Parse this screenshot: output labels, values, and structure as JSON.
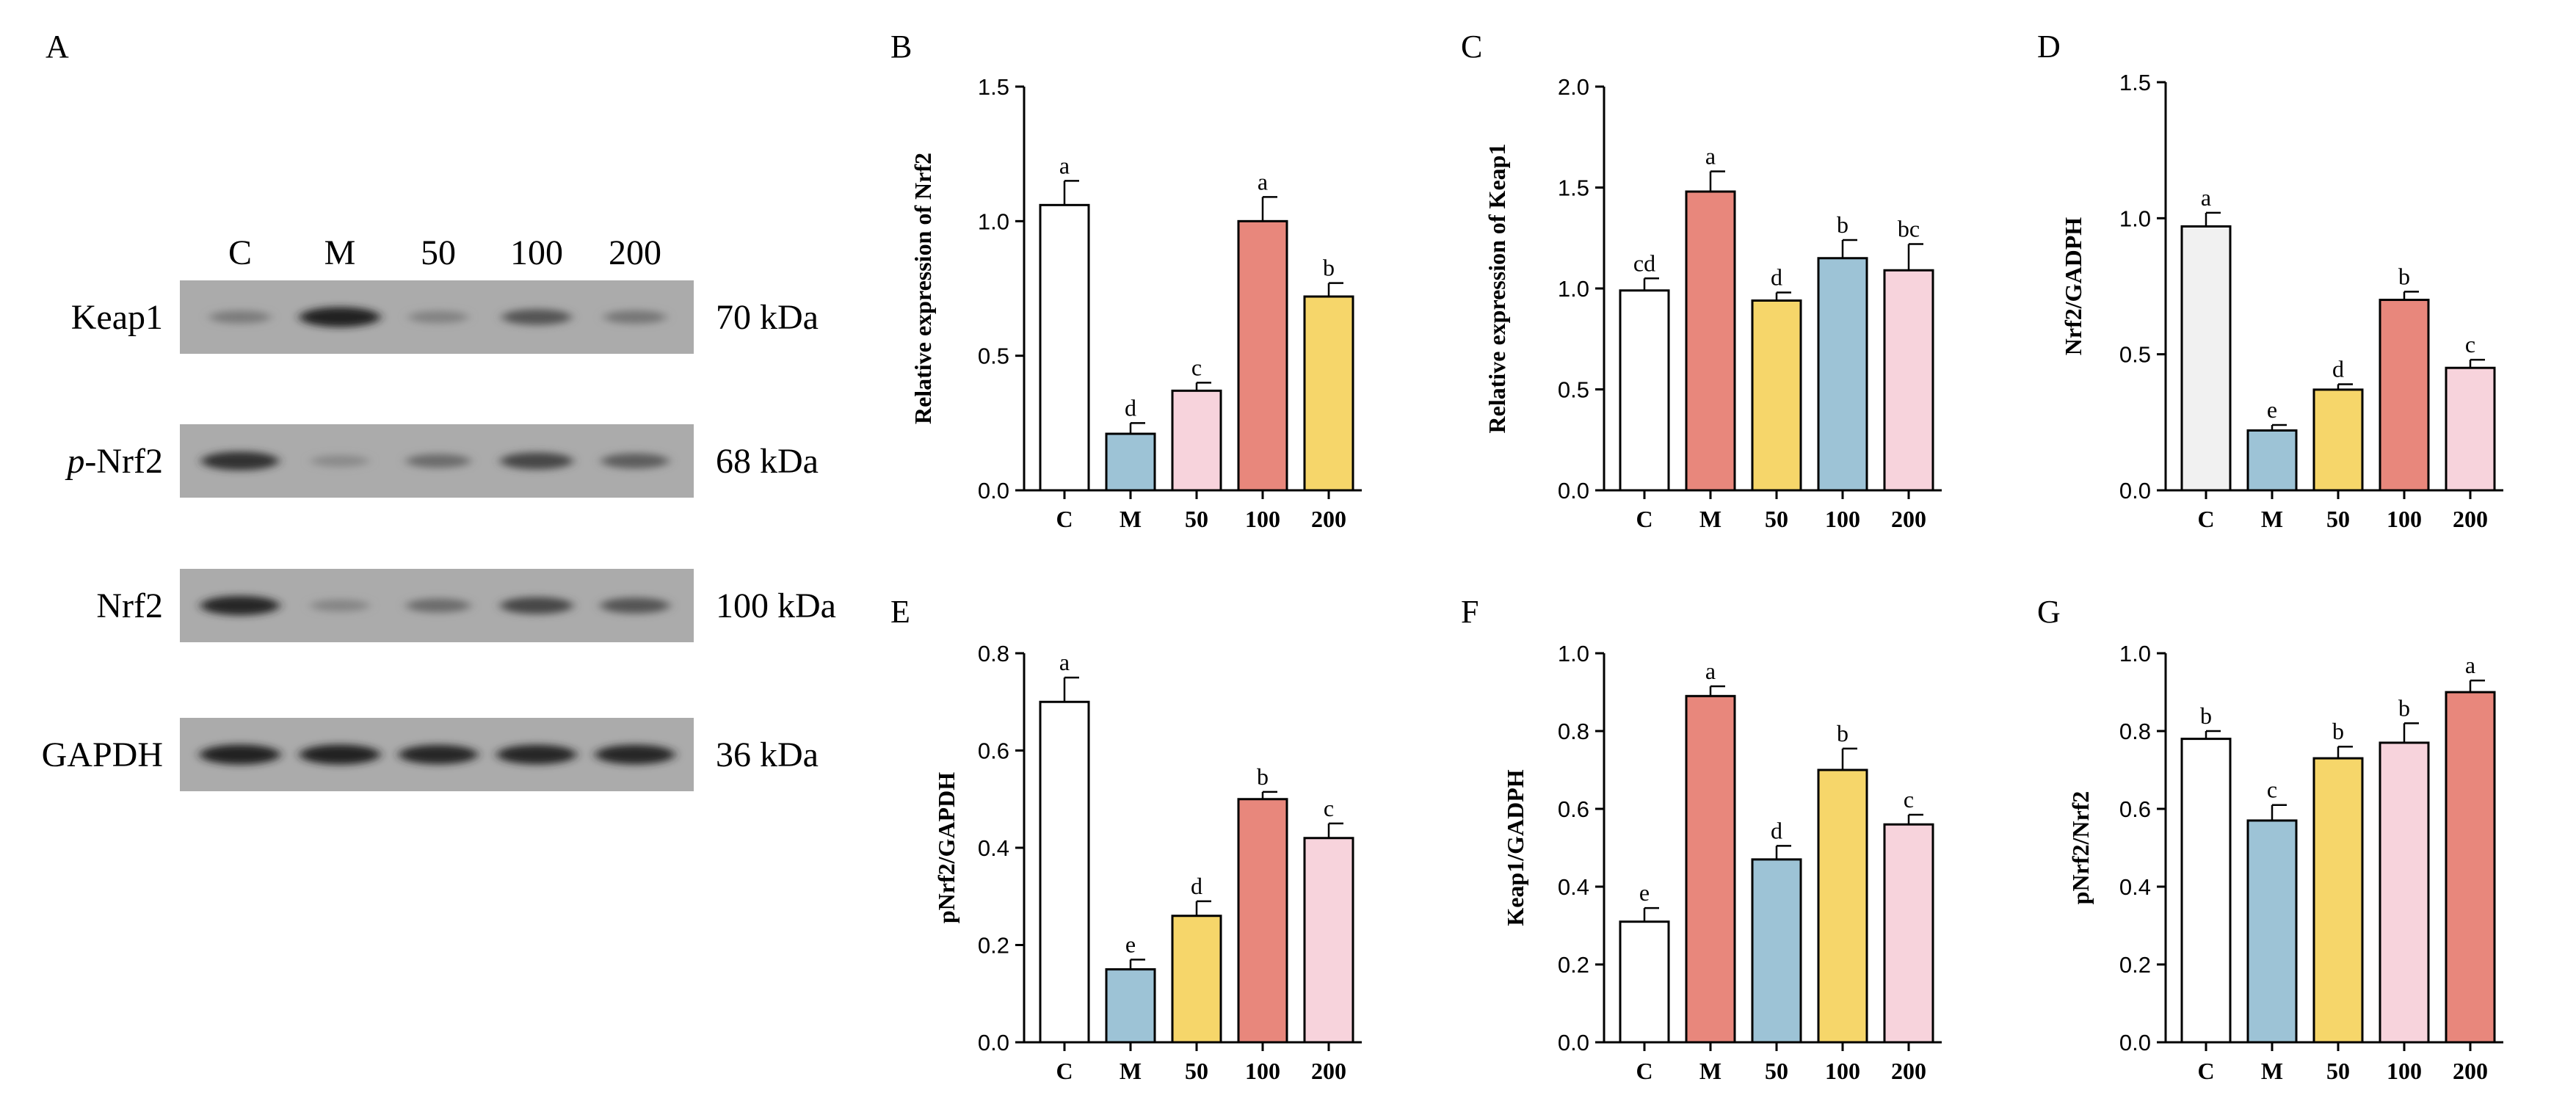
{
  "western_blot": {
    "panel_label": "A",
    "lanes": [
      "C",
      "M",
      "50",
      "100",
      "200"
    ],
    "rows": [
      {
        "prefix": "",
        "name": "Keap1",
        "size": "70 kDa",
        "intensity": [
          0.35,
          0.95,
          0.3,
          0.6,
          0.38
        ]
      },
      {
        "prefix": "p",
        "name": "-Nrf2",
        "size": "68 kDa",
        "intensity": [
          0.85,
          0.25,
          0.45,
          0.7,
          0.55
        ]
      },
      {
        "prefix": "",
        "name": "Nrf2",
        "size": "100 kDa",
        "intensity": [
          0.9,
          0.28,
          0.45,
          0.7,
          0.6
        ]
      },
      {
        "prefix": "",
        "name": "GAPDH",
        "size": "36 kDa",
        "intensity": [
          0.95,
          0.95,
          0.9,
          0.92,
          0.92
        ]
      }
    ]
  },
  "chart_data": [
    {
      "id": "B",
      "panel_label": "B",
      "type": "bar",
      "categories": [
        "C",
        "M",
        "50",
        "100",
        "200"
      ],
      "values": [
        1.06,
        0.21,
        0.37,
        1.0,
        0.72
      ],
      "errors": [
        0.09,
        0.04,
        0.03,
        0.09,
        0.05
      ],
      "letters": [
        "a",
        "d",
        "c",
        "a",
        "b"
      ],
      "colors": [
        "#ffffff",
        "#9dc3d6",
        "#f7d3dc",
        "#e8877c",
        "#f6d66a"
      ],
      "ylabel": "Relative expression of Nrf2",
      "ylim": [
        0,
        1.5
      ],
      "yticks": [
        0.0,
        0.5,
        1.0,
        1.5
      ],
      "tick_labels": [
        "0.0",
        "0.5",
        "1.0",
        "1.5"
      ]
    },
    {
      "id": "C",
      "panel_label": "C",
      "type": "bar",
      "categories": [
        "C",
        "M",
        "50",
        "100",
        "200"
      ],
      "values": [
        0.99,
        1.48,
        0.94,
        1.15,
        1.09
      ],
      "errors": [
        0.06,
        0.1,
        0.04,
        0.09,
        0.13
      ],
      "letters": [
        "cd",
        "a",
        "d",
        "b",
        "bc"
      ],
      "colors": [
        "#ffffff",
        "#e8877c",
        "#f6d66a",
        "#9dc3d6",
        "#f7d3dc"
      ],
      "ylabel": "Relative expression of Keap1",
      "ylim": [
        0,
        2.0
      ],
      "yticks": [
        0.0,
        0.5,
        1.0,
        1.5,
        2.0
      ],
      "tick_labels": [
        "0.0",
        "0.5",
        "1.0",
        "1.5",
        "2.0"
      ]
    },
    {
      "id": "D",
      "panel_label": "D",
      "type": "bar",
      "categories": [
        "C",
        "M",
        "50",
        "100",
        "200"
      ],
      "values": [
        0.97,
        0.22,
        0.37,
        0.7,
        0.45
      ],
      "errors": [
        0.05,
        0.02,
        0.02,
        0.03,
        0.03
      ],
      "letters": [
        "a",
        "e",
        "d",
        "b",
        "c"
      ],
      "colors": [
        "#f1f1f1",
        "#9dc3d6",
        "#f6d66a",
        "#e8877c",
        "#f7d3dc"
      ],
      "ylabel": "Nrf2/GADPH",
      "ylim": [
        0,
        1.5
      ],
      "yticks": [
        0.0,
        0.5,
        1.0,
        1.5
      ],
      "tick_labels": [
        "0.0",
        "0.5",
        "1.0",
        "1.5"
      ]
    },
    {
      "id": "E",
      "panel_label": "E",
      "type": "bar",
      "categories": [
        "C",
        "M",
        "50",
        "100",
        "200"
      ],
      "values": [
        0.7,
        0.15,
        0.26,
        0.5,
        0.42
      ],
      "errors": [
        0.05,
        0.02,
        0.03,
        0.015,
        0.03
      ],
      "letters": [
        "a",
        "e",
        "d",
        "b",
        "c"
      ],
      "colors": [
        "#ffffff",
        "#9dc3d6",
        "#f6d66a",
        "#e8877c",
        "#f7d3dc"
      ],
      "ylabel": "pNrf2/GAPDH",
      "ylim": [
        0,
        0.8
      ],
      "yticks": [
        0.0,
        0.2,
        0.4,
        0.6,
        0.8
      ],
      "tick_labels": [
        "0.0",
        "0.2",
        "0.4",
        "0.6",
        "0.8"
      ]
    },
    {
      "id": "F",
      "panel_label": "F",
      "type": "bar",
      "categories": [
        "C",
        "M",
        "50",
        "100",
        "200"
      ],
      "values": [
        0.31,
        0.89,
        0.47,
        0.7,
        0.56
      ],
      "errors": [
        0.035,
        0.025,
        0.035,
        0.055,
        0.025
      ],
      "letters": [
        "e",
        "a",
        "d",
        "b",
        "c"
      ],
      "colors": [
        "#ffffff",
        "#e8877c",
        "#9dc3d6",
        "#f6d66a",
        "#f7d3dc"
      ],
      "ylabel": "Keap1/GADPH",
      "ylim": [
        0,
        1.0
      ],
      "yticks": [
        0.0,
        0.2,
        0.4,
        0.6,
        0.8,
        1.0
      ],
      "tick_labels": [
        "0.0",
        "0.2",
        "0.4",
        "0.6",
        "0.8",
        "1.0"
      ]
    },
    {
      "id": "G",
      "panel_label": "G",
      "type": "bar",
      "categories": [
        "C",
        "M",
        "50",
        "100",
        "200"
      ],
      "values": [
        0.78,
        0.57,
        0.73,
        0.77,
        0.9
      ],
      "errors": [
        0.02,
        0.04,
        0.03,
        0.05,
        0.03
      ],
      "letters": [
        "b",
        "c",
        "b",
        "b",
        "a"
      ],
      "colors": [
        "#ffffff",
        "#9dc3d6",
        "#f6d66a",
        "#f7d3dc",
        "#e8877c"
      ],
      "ylabel": "pNrf2/Nrf2",
      "ylim": [
        0,
        1.0
      ],
      "yticks": [
        0.0,
        0.2,
        0.4,
        0.6,
        0.8,
        1.0
      ],
      "tick_labels": [
        "0.0",
        "0.2",
        "0.4",
        "0.6",
        "0.8",
        "1.0"
      ]
    }
  ]
}
